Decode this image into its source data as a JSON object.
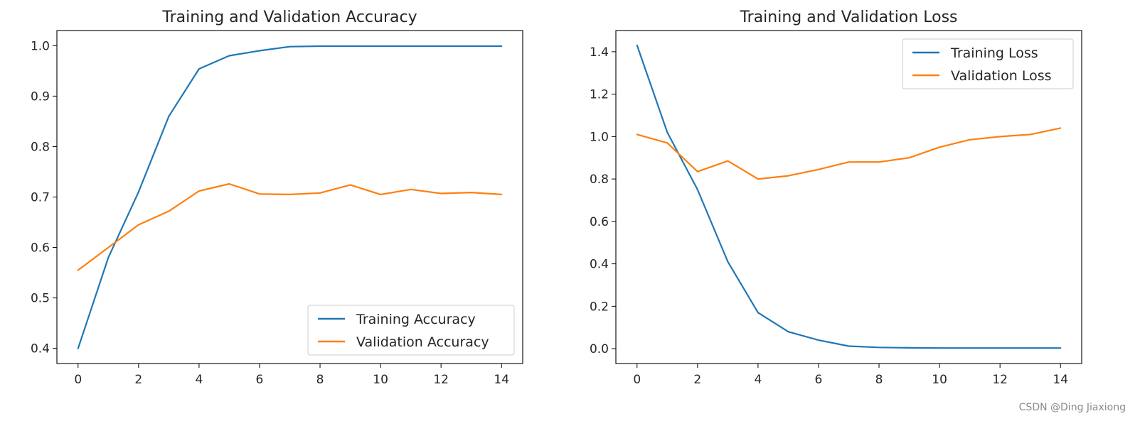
{
  "watermark": "CSDN @Ding Jiaxiong",
  "colors": {
    "training": "#1f77b4",
    "validation": "#ff7f0e"
  },
  "chart_data": [
    {
      "type": "line",
      "title": "Training and Validation Accuracy",
      "xlabel": "",
      "ylabel": "",
      "xlim": [
        -0.7,
        14.7
      ],
      "ylim": [
        0.37,
        1.03
      ],
      "xticks": [
        0,
        2,
        4,
        6,
        8,
        10,
        12,
        14
      ],
      "xtick_labels": [
        "0",
        "2",
        "4",
        "6",
        "8",
        "10",
        "12",
        "14"
      ],
      "yticks": [
        0.4,
        0.5,
        0.6,
        0.7,
        0.8,
        0.9,
        1.0
      ],
      "ytick_labels": [
        "0.4",
        "0.5",
        "0.6",
        "0.7",
        "0.8",
        "0.9",
        "1.0"
      ],
      "legend_position": "lower-right",
      "x": [
        0,
        1,
        2,
        3,
        4,
        5,
        6,
        7,
        8,
        9,
        10,
        11,
        12,
        13,
        14
      ],
      "series": [
        {
          "name": "Training Accuracy",
          "color": "#1f77b4",
          "values": [
            0.4,
            0.58,
            0.71,
            0.86,
            0.954,
            0.98,
            0.99,
            0.998,
            0.999,
            0.999,
            0.999,
            0.999,
            0.999,
            0.999,
            0.999
          ]
        },
        {
          "name": "Validation Accuracy",
          "color": "#ff7f0e",
          "values": [
            0.555,
            0.6,
            0.645,
            0.672,
            0.712,
            0.726,
            0.706,
            0.705,
            0.708,
            0.724,
            0.705,
            0.715,
            0.707,
            0.709,
            0.705
          ]
        }
      ]
    },
    {
      "type": "line",
      "title": "Training and Validation Loss",
      "xlabel": "",
      "ylabel": "",
      "xlim": [
        -0.7,
        14.7
      ],
      "ylim": [
        -0.07,
        1.5
      ],
      "xticks": [
        0,
        2,
        4,
        6,
        8,
        10,
        12,
        14
      ],
      "xtick_labels": [
        "0",
        "2",
        "4",
        "6",
        "8",
        "10",
        "12",
        "14"
      ],
      "yticks": [
        0.0,
        0.2,
        0.4,
        0.6,
        0.8,
        1.0,
        1.2,
        1.4
      ],
      "ytick_labels": [
        "0.0",
        "0.2",
        "0.4",
        "0.6",
        "0.8",
        "1.0",
        "1.2",
        "1.4"
      ],
      "legend_position": "upper-right",
      "x": [
        0,
        1,
        2,
        3,
        4,
        5,
        6,
        7,
        8,
        9,
        10,
        11,
        12,
        13,
        14
      ],
      "series": [
        {
          "name": "Training Loss",
          "color": "#1f77b4",
          "values": [
            1.43,
            1.02,
            0.75,
            0.41,
            0.17,
            0.08,
            0.04,
            0.012,
            0.006,
            0.004,
            0.003,
            0.003,
            0.003,
            0.003,
            0.003
          ]
        },
        {
          "name": "Validation Loss",
          "color": "#ff7f0e",
          "values": [
            1.01,
            0.97,
            0.835,
            0.885,
            0.8,
            0.815,
            0.845,
            0.88,
            0.88,
            0.9,
            0.95,
            0.985,
            1.0,
            1.01,
            1.04
          ]
        }
      ]
    }
  ]
}
